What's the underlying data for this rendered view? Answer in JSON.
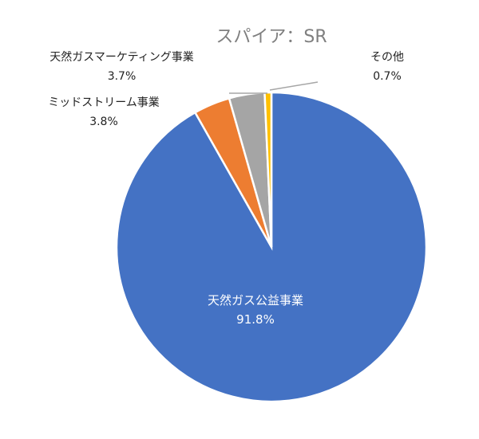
{
  "chart_data": {
    "type": "pie",
    "title": "スパイア：SR",
    "start_angle_deg": 0,
    "direction": "clockwise",
    "slices": [
      {
        "label": "天然ガス公益事業",
        "value": 91.8,
        "display": "91.8%",
        "color": "#4472c4"
      },
      {
        "label": "ミッドストリーム事業",
        "value": 3.8,
        "display": "3.8%",
        "color": "#ed7d31"
      },
      {
        "label": "天然ガスマーケティング事業",
        "value": 3.7,
        "display": "3.7%",
        "color": "#a5a5a5"
      },
      {
        "label": "その他",
        "value": 0.7,
        "display": "0.7%",
        "color": "#ffc000"
      }
    ],
    "legend": "none",
    "data_labels": "category_and_percent"
  }
}
